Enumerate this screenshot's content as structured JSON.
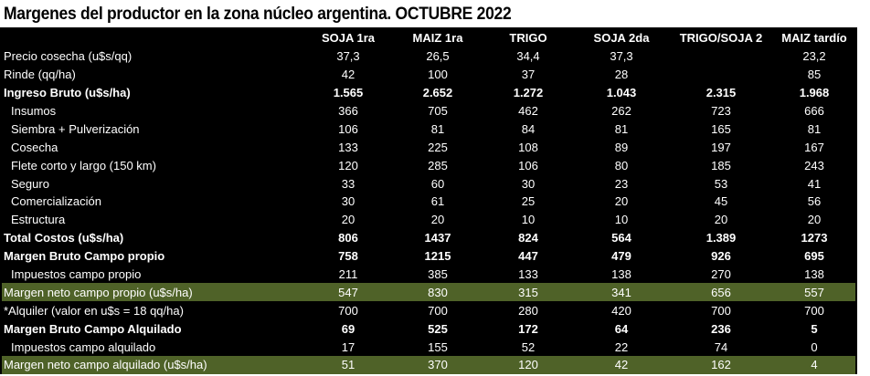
{
  "title": "Margenes del productor en la zona núcleo argentina. OCTUBRE 2022",
  "columns": [
    "",
    "SOJA 1ra",
    "MAIZ 1ra",
    "TRIGO",
    "SOJA 2da",
    "TRIGO/SOJA 2",
    "MAIZ tardío"
  ],
  "rows": [
    {
      "label": "Precio cosecha (u$s/qq)",
      "values": [
        "37,3",
        "26,5",
        "34,4",
        "37,3",
        "",
        "23,2"
      ],
      "style": "plain"
    },
    {
      "label": "Rinde (qq/ha)",
      "values": [
        "42",
        "100",
        "37",
        "28",
        "",
        "85"
      ],
      "style": "plain"
    },
    {
      "label": "Ingreso Bruto (u$s/ha)",
      "values": [
        "1.565",
        "2.652",
        "1.272",
        "1.043",
        "2.315",
        "1.968"
      ],
      "style": "bold"
    },
    {
      "label": "Insumos",
      "values": [
        "366",
        "705",
        "462",
        "262",
        "723",
        "666"
      ],
      "style": "indent"
    },
    {
      "label": "Siembra + Pulverización",
      "values": [
        "106",
        "81",
        "84",
        "81",
        "165",
        "81"
      ],
      "style": "indent"
    },
    {
      "label": "Cosecha",
      "values": [
        "133",
        "225",
        "108",
        "89",
        "197",
        "167"
      ],
      "style": "indent"
    },
    {
      "label": "Flete corto y largo (150 km)",
      "values": [
        "120",
        "285",
        "106",
        "80",
        "185",
        "243"
      ],
      "style": "indent"
    },
    {
      "label": "Seguro",
      "values": [
        "33",
        "60",
        "30",
        "23",
        "53",
        "41"
      ],
      "style": "indent"
    },
    {
      "label": "Comercialización",
      "values": [
        "30",
        "61",
        "25",
        "20",
        "45",
        "56"
      ],
      "style": "indent"
    },
    {
      "label": "Estructura",
      "values": [
        "20",
        "20",
        "10",
        "10",
        "20",
        "20"
      ],
      "style": "indent"
    },
    {
      "label": "Total Costos (u$s/ha)",
      "values": [
        "806",
        "1437",
        "824",
        "564",
        "1.389",
        "1273"
      ],
      "style": "bold"
    },
    {
      "label": "Margen Bruto Campo propio",
      "values": [
        "758",
        "1215",
        "447",
        "479",
        "926",
        "695"
      ],
      "style": "bold"
    },
    {
      "label": "Impuestos  campo propio",
      "values": [
        "211",
        "385",
        "133",
        "138",
        "270",
        "138"
      ],
      "style": "indent"
    },
    {
      "label": "Margen neto campo propio (u$s/ha)",
      "values": [
        "547",
        "830",
        "315",
        "341",
        "656",
        "557"
      ],
      "style": "highlight"
    },
    {
      "label": "*Alquiler (valor en u$s = 18 qq/ha)",
      "values": [
        "700",
        "700",
        "280",
        "420",
        "700",
        "700"
      ],
      "style": "plain"
    },
    {
      "label": "Margen Bruto Campo Alquilado",
      "values": [
        "69",
        "525",
        "172",
        "64",
        "236",
        "5"
      ],
      "style": "bold"
    },
    {
      "label": "Impuestos campo alquilado",
      "values": [
        "17",
        "155",
        "52",
        "22",
        "74",
        "0"
      ],
      "style": "indent"
    },
    {
      "label": "Margen neto campo alquilado (u$s/ha)",
      "values": [
        "51",
        "370",
        "120",
        "42",
        "162",
        "4"
      ],
      "style": "highlight"
    }
  ],
  "colors": {
    "background": "#000000",
    "text": "#ffffff",
    "highlight": "#4f6228"
  }
}
